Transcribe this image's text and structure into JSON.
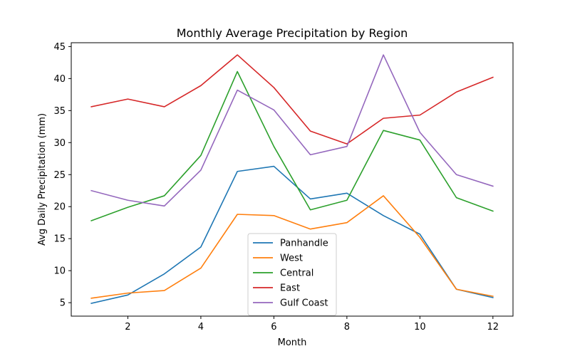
{
  "chart_data": {
    "type": "line",
    "title": "Monthly Average Precipitation by Region",
    "xlabel": "Month",
    "ylabel": "Avg Daily Precipitation (mm)",
    "x": [
      1,
      2,
      3,
      4,
      5,
      6,
      7,
      8,
      9,
      10,
      11,
      12
    ],
    "xlim": [
      0.45,
      12.55
    ],
    "ylim": [
      2.9,
      45.6
    ],
    "xticks": [
      2,
      4,
      6,
      8,
      10,
      12
    ],
    "yticks": [
      5,
      10,
      15,
      20,
      25,
      30,
      35,
      40,
      45
    ],
    "grid": false,
    "legend_position": "lower-center",
    "series": [
      {
        "name": "Panhandle",
        "color": "#1f77b4",
        "values": [
          4.9,
          6.2,
          9.5,
          13.7,
          25.5,
          26.3,
          21.2,
          22.1,
          18.6,
          15.7,
          7.1,
          5.8
        ]
      },
      {
        "name": "West",
        "color": "#ff7f0e",
        "values": [
          5.7,
          6.5,
          6.9,
          10.4,
          18.8,
          18.6,
          16.5,
          17.5,
          21.7,
          15.2,
          7.1,
          6.0
        ]
      },
      {
        "name": "Central",
        "color": "#2ca02c",
        "values": [
          17.8,
          19.9,
          21.7,
          28.0,
          41.1,
          29.4,
          19.5,
          21.0,
          31.9,
          30.4,
          21.4,
          19.3
        ]
      },
      {
        "name": "East",
        "color": "#d62728",
        "values": [
          35.6,
          36.8,
          35.6,
          38.9,
          43.7,
          38.6,
          31.8,
          29.8,
          33.8,
          34.3,
          37.9,
          40.2
        ]
      },
      {
        "name": "Gulf Coast",
        "color": "#9467bd",
        "values": [
          22.5,
          21.0,
          20.1,
          25.7,
          38.2,
          35.1,
          28.1,
          29.4,
          43.7,
          31.6,
          25.0,
          23.2
        ]
      }
    ]
  }
}
